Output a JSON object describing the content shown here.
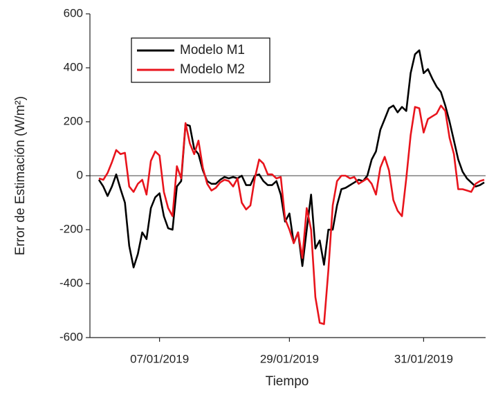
{
  "chart_data": {
    "type": "line",
    "x_label": "Tiempo",
    "y_label": "Error de Estimación (W/m²)",
    "categories": [
      null,
      null,
      null,
      null,
      null,
      null,
      null,
      null,
      null,
      null,
      null,
      null,
      null,
      null,
      "07/01/2019",
      null,
      null,
      null,
      null,
      null,
      null,
      null,
      null,
      null,
      null,
      null,
      null,
      null,
      null,
      null,
      null,
      null,
      null,
      null,
      null,
      null,
      null,
      null,
      null,
      null,
      null,
      null,
      null,
      null,
      "29/01/2019",
      null,
      null,
      null,
      null,
      null,
      null,
      null,
      null,
      null,
      null,
      null,
      null,
      null,
      null,
      null,
      null,
      null,
      null,
      null,
      null,
      null,
      null,
      null,
      null,
      null,
      null,
      null,
      null,
      null,
      null,
      "31/01/2019",
      null,
      null,
      null,
      null,
      null,
      null,
      null,
      null,
      null,
      null,
      null,
      null,
      null,
      null
    ],
    "series": [
      {
        "name": "Modelo M1",
        "color": "#000000",
        "values": [
          -15,
          -40,
          -75,
          -40,
          5,
          -50,
          -100,
          -260,
          -340,
          -290,
          -210,
          -235,
          -120,
          -80,
          -65,
          -150,
          -195,
          -200,
          -40,
          -20,
          190,
          185,
          100,
          80,
          20,
          -20,
          -30,
          -30,
          -15,
          -5,
          -10,
          -5,
          -10,
          0,
          -35,
          -35,
          0,
          5,
          -20,
          -35,
          -35,
          -20,
          -70,
          -170,
          -140,
          -250,
          -210,
          -335,
          -200,
          -70,
          -270,
          -240,
          -330,
          -200,
          -200,
          -110,
          -50,
          -45,
          -35,
          -25,
          -15,
          -20,
          0,
          60,
          90,
          170,
          210,
          250,
          260,
          235,
          255,
          240,
          380,
          450,
          465,
          380,
          395,
          360,
          330,
          310,
          260,
          200,
          130,
          60,
          15,
          -10,
          -25,
          -40,
          -35,
          -25
        ]
      },
      {
        "name": "Modelo M2",
        "color": "#e8141c",
        "values": [
          -10,
          -15,
          10,
          50,
          95,
          80,
          85,
          -40,
          -60,
          -30,
          -15,
          -70,
          55,
          90,
          75,
          -60,
          -120,
          -150,
          35,
          -10,
          195,
          120,
          80,
          130,
          30,
          -30,
          -55,
          -45,
          -25,
          -15,
          -20,
          -40,
          -10,
          -100,
          -125,
          -110,
          -10,
          60,
          45,
          5,
          5,
          -10,
          -5,
          -160,
          -200,
          -250,
          -210,
          -305,
          -120,
          -200,
          -450,
          -545,
          -550,
          -350,
          -110,
          -20,
          0,
          0,
          -10,
          -5,
          -30,
          -20,
          -10,
          -30,
          -70,
          30,
          70,
          20,
          -90,
          -130,
          -150,
          -10,
          150,
          255,
          250,
          160,
          210,
          220,
          230,
          260,
          240,
          140,
          80,
          -50,
          -50,
          -55,
          -60,
          -30,
          -20,
          -15
        ]
      }
    ],
    "ylim": [
      -600,
      600
    ],
    "yticks": [
      -600,
      -400,
      -200,
      0,
      200,
      400,
      600
    ],
    "hline": 0,
    "legend": "upper-left",
    "grid": false
  }
}
